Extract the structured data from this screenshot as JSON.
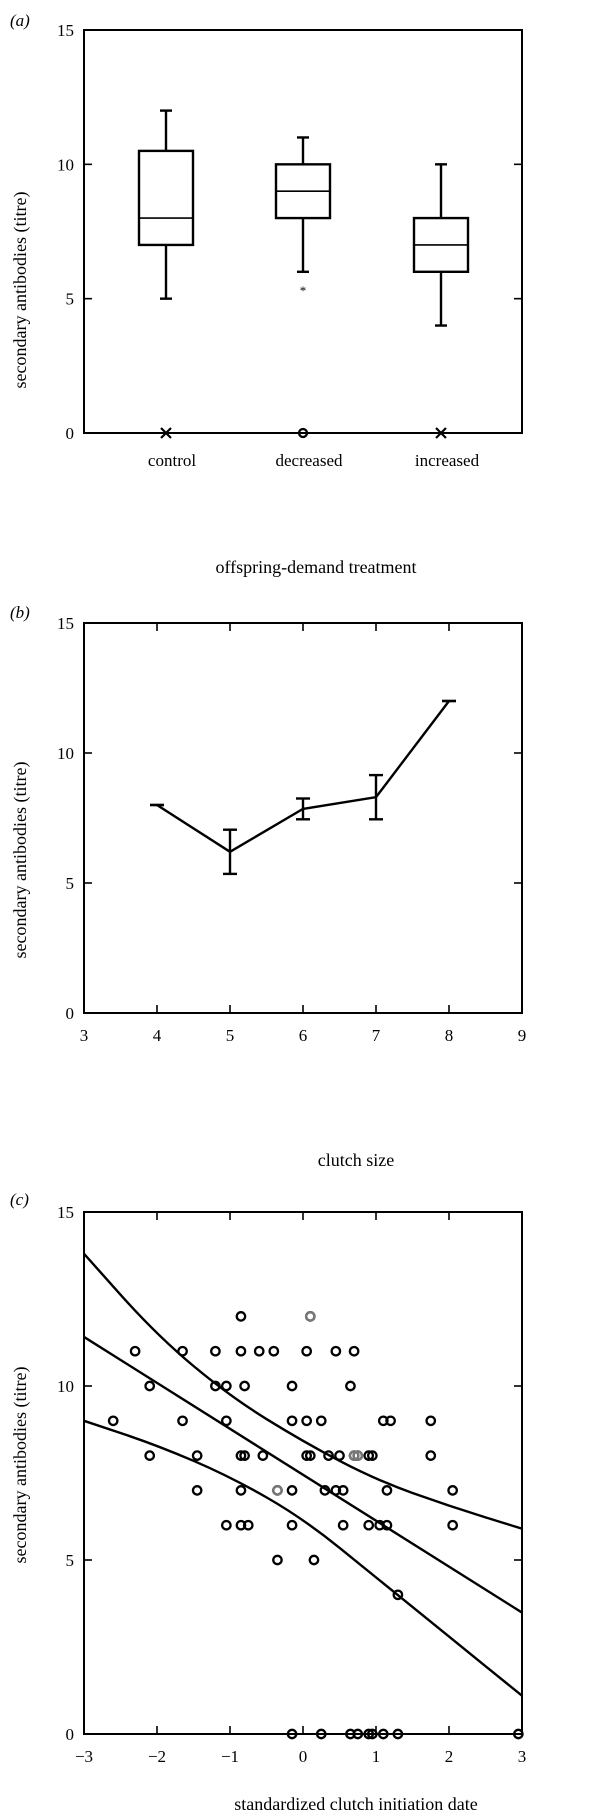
{
  "chart_data": [
    {
      "panel": "(a)",
      "type": "box",
      "xlabel": "offspring-demand treatment",
      "ylabel": "secondary antibodies (titre)",
      "ylim": [
        0,
        15
      ],
      "yticks": [
        "0",
        "5",
        "10",
        "15"
      ],
      "categories": [
        "control",
        "decreased",
        "increased"
      ],
      "boxes": [
        {
          "category": "control",
          "min": 5,
          "q1": 7,
          "median": 8,
          "q3": 10.5,
          "max": 12,
          "bottom_marker": "cross",
          "outliers": []
        },
        {
          "category": "decreased",
          "min": 6,
          "q1": 8,
          "median": 9,
          "q3": 10,
          "max": 11,
          "bottom_marker": "circle",
          "outliers": [
            5.4
          ]
        },
        {
          "category": "increased",
          "min": 4,
          "q1": 6,
          "median": 7,
          "q3": 8,
          "max": 10,
          "bottom_marker": "cross",
          "outliers": []
        }
      ]
    },
    {
      "panel": "(b)",
      "type": "line",
      "xlabel": "clutch size",
      "ylabel": "secondary antibodies (titre)",
      "xlim": [
        3,
        9
      ],
      "ylim": [
        0,
        15
      ],
      "xticks": [
        "3",
        "4",
        "5",
        "6",
        "7",
        "8",
        "9"
      ],
      "yticks": [
        "0",
        "5",
        "10",
        "15"
      ],
      "x": [
        4,
        5,
        6,
        7,
        8
      ],
      "y": [
        8,
        6.2,
        7.85,
        8.3,
        12
      ],
      "error": [
        0,
        0.85,
        0.4,
        0.85,
        0
      ]
    },
    {
      "panel": "(c)",
      "type": "scatter",
      "xlabel": "standardized clutch initiation date",
      "ylabel": "secondary antibodies (titre)",
      "xlim": [
        -3,
        3
      ],
      "ylim": [
        0,
        15
      ],
      "xticks": [
        "−3",
        "−2",
        "−1",
        "0",
        "1",
        "2",
        "3"
      ],
      "yticks": [
        "0",
        "5",
        "10",
        "15"
      ],
      "fit": {
        "intercept": 7.45,
        "slope": -1.32
      },
      "ci_upper": [
        [
          -3,
          13.8
        ],
        [
          -2,
          11.45
        ],
        [
          -1,
          9.7
        ],
        [
          0,
          8.4
        ],
        [
          1,
          7.3
        ],
        [
          2,
          6.55
        ],
        [
          3,
          5.9
        ]
      ],
      "ci_lower": [
        [
          -3,
          9.0
        ],
        [
          -2,
          8.3
        ],
        [
          -1,
          7.4
        ],
        [
          0,
          6.2
        ],
        [
          1,
          4.5
        ],
        [
          2,
          2.8
        ],
        [
          3,
          1.1
        ]
      ],
      "points": [
        [
          -2.6,
          9
        ],
        [
          -2.3,
          11
        ],
        [
          -2.1,
          10
        ],
        [
          -2.1,
          8
        ],
        [
          -1.65,
          11
        ],
        [
          -1.65,
          9
        ],
        [
          -1.45,
          8
        ],
        [
          -1.45,
          7
        ],
        [
          -1.2,
          11
        ],
        [
          -1.2,
          10
        ],
        [
          -1.05,
          10
        ],
        [
          -1.05,
          9
        ],
        [
          -1.05,
          6
        ],
        [
          -0.85,
          12
        ],
        [
          -0.85,
          11
        ],
        [
          -0.8,
          10
        ],
        [
          -0.85,
          8
        ],
        [
          -0.85,
          7
        ],
        [
          -0.85,
          6
        ],
        [
          -0.8,
          8
        ],
        [
          -0.75,
          6
        ],
        [
          -0.6,
          11
        ],
        [
          -0.55,
          8
        ],
        [
          -0.4,
          11
        ],
        [
          -0.35,
          5
        ],
        [
          -0.35,
          7
        ],
        [
          -0.15,
          10
        ],
        [
          -0.15,
          9
        ],
        [
          -0.15,
          7
        ],
        [
          -0.15,
          6
        ],
        [
          -0.15,
          0
        ],
        [
          0.05,
          11
        ],
        [
          0.05,
          9
        ],
        [
          0.05,
          8
        ],
        [
          0.1,
          12
        ],
        [
          0.1,
          8
        ],
        [
          0.15,
          5
        ],
        [
          0.25,
          9
        ],
        [
          0.25,
          0
        ],
        [
          0.3,
          7
        ],
        [
          0.35,
          8
        ],
        [
          0.45,
          11
        ],
        [
          0.45,
          7
        ],
        [
          0.5,
          8
        ],
        [
          0.55,
          7
        ],
        [
          0.55,
          6
        ],
        [
          0.65,
          10
        ],
        [
          0.7,
          11
        ],
        [
          0.65,
          0
        ],
        [
          0.75,
          0
        ],
        [
          0.7,
          8
        ],
        [
          0.75,
          8
        ],
        [
          0.9,
          8
        ],
        [
          0.95,
          8
        ],
        [
          0.9,
          6
        ],
        [
          0.9,
          0
        ],
        [
          0.95,
          0
        ],
        [
          1.05,
          6
        ],
        [
          1.1,
          9
        ],
        [
          1.1,
          0
        ],
        [
          1.15,
          7
        ],
        [
          1.2,
          9
        ],
        [
          1.15,
          6
        ],
        [
          1.3,
          4
        ],
        [
          1.3,
          0
        ],
        [
          1.75,
          9
        ],
        [
          1.75,
          8
        ],
        [
          2.05,
          7
        ],
        [
          2.05,
          6
        ],
        [
          2.95,
          0
        ]
      ],
      "grey_points": [
        [
          -0.35,
          7
        ],
        [
          0.1,
          12
        ],
        [
          0.7,
          8
        ],
        [
          0.75,
          8
        ]
      ]
    }
  ]
}
